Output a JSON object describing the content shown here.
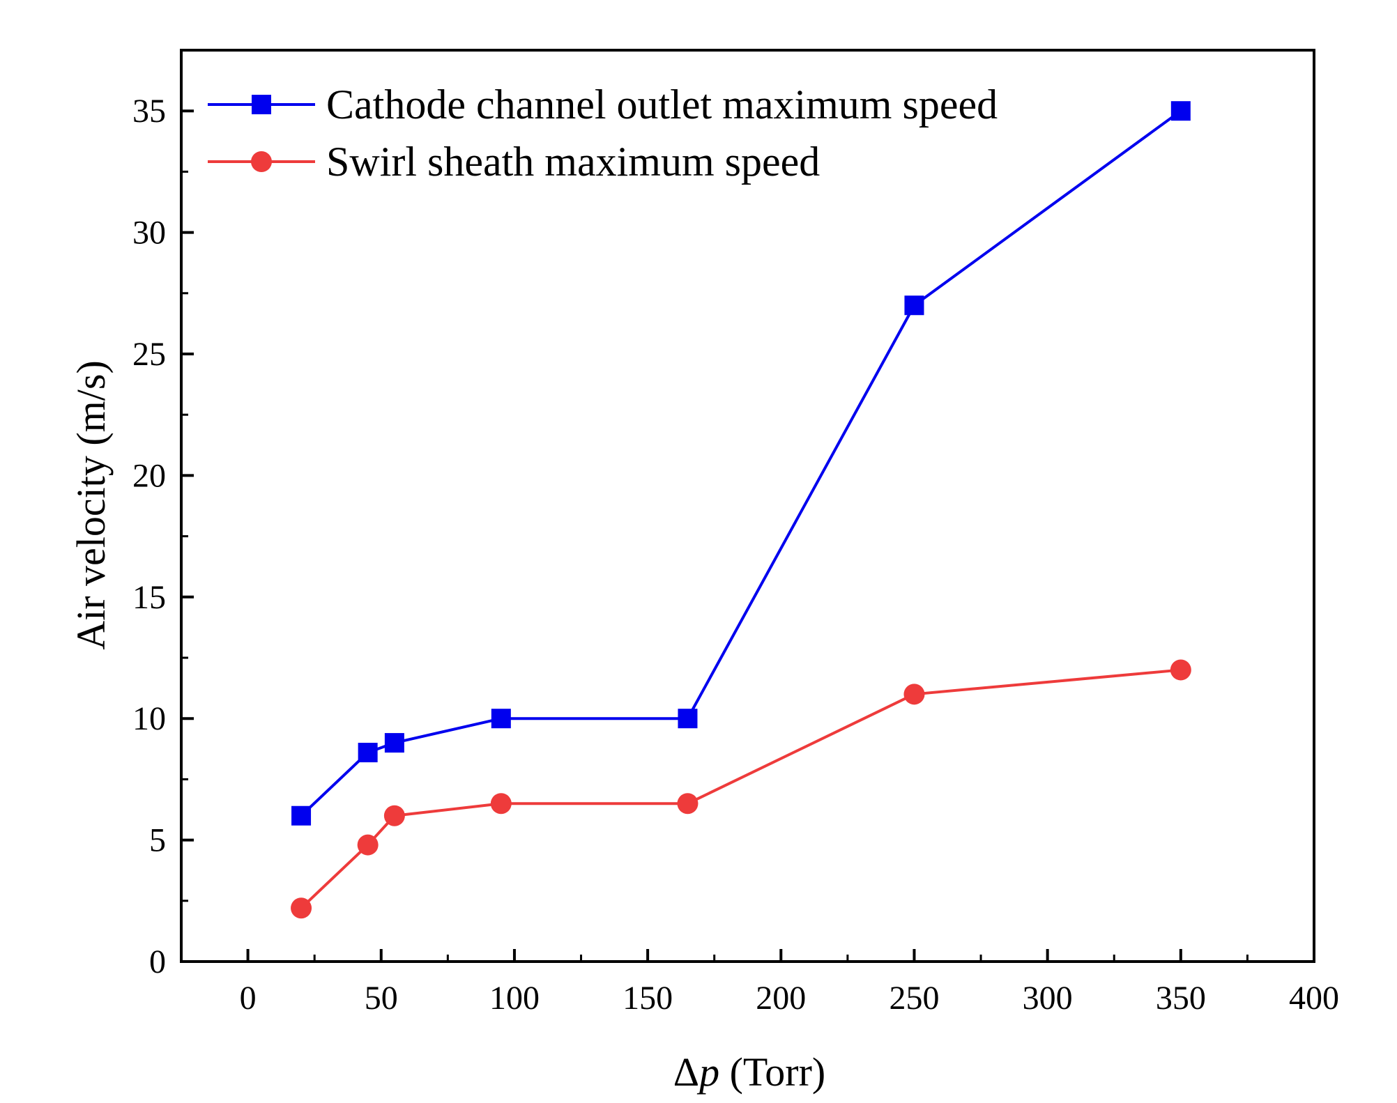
{
  "chart_data": {
    "type": "line",
    "title": "",
    "xlabel": "Δp (Torr)",
    "xlabel_symbol": "Δ",
    "xlabel_var": "p",
    "xlabel_unit": " (Torr)",
    "ylabel": "Air velocity (m/s)",
    "xlim": [
      -25,
      400
    ],
    "ylim": [
      0,
      37.5
    ],
    "xticks": [
      0,
      50,
      100,
      150,
      200,
      250,
      300,
      350,
      400
    ],
    "yticks": [
      0,
      5,
      10,
      15,
      20,
      25,
      30,
      35
    ],
    "x_minor_step": 25,
    "y_minor_step": 2.5,
    "legend_position": "top-left",
    "grid": false,
    "series": [
      {
        "name": "Cathode channel outlet maximum speed",
        "color": "#0000ee",
        "marker": "square",
        "x": [
          20,
          45,
          55,
          95,
          165,
          250,
          350
        ],
        "y": [
          6,
          8.6,
          9,
          10,
          10,
          27,
          35
        ]
      },
      {
        "name": "Swirl sheath maximum speed",
        "color": "#ee3b3b",
        "marker": "circle",
        "x": [
          20,
          45,
          55,
          95,
          165,
          250,
          350
        ],
        "y": [
          2.2,
          4.8,
          6,
          6.5,
          6.5,
          11,
          12
        ]
      }
    ]
  }
}
